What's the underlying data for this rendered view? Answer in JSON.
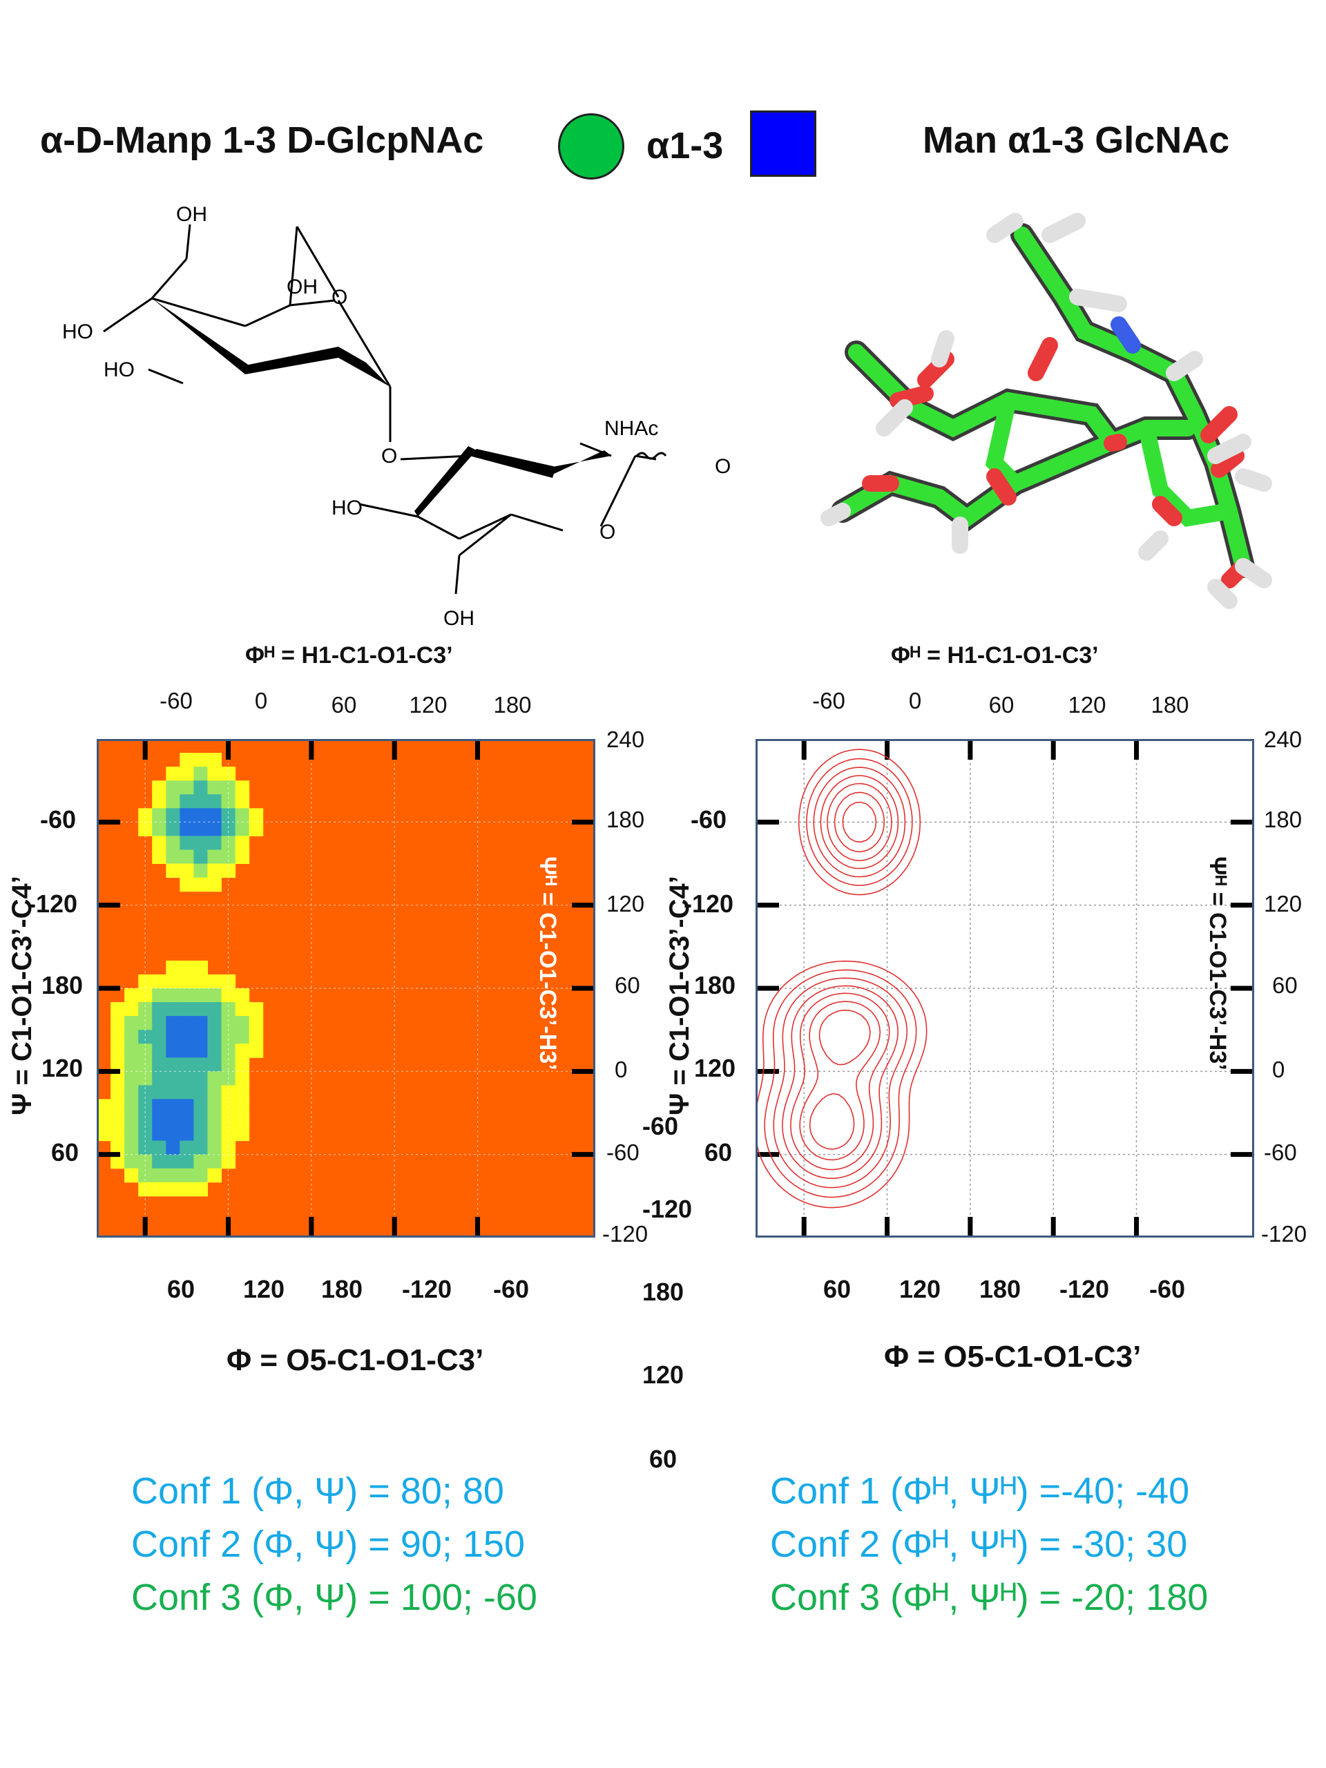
{
  "header": {
    "left_title": "α-D-Manp 1-3 D-GlcpNAc",
    "linkage_label": "α1-3",
    "right_title": "Man α1-3 GlcNAc",
    "circle_color": "#00c040",
    "square_color": "#0000ff"
  },
  "structure": {
    "labels": [
      "OH",
      "OH",
      "O",
      "HO",
      "HO",
      "O",
      "NHAc",
      "OH",
      "HO",
      "O",
      "OH"
    ]
  },
  "plots": {
    "top_axis_title": "Φᴴ = H1-C1-O1-C3’",
    "bottom_axis_title": "Φ = O5-C1-O1-C3’",
    "left_axis_title": "Ψ = C1-O1-C3’-C4’",
    "right_axis_title": "Ψᴴ = C1-O1-C3’-H3’",
    "top_ticks": [
      "-60",
      "0",
      "60",
      "120",
      "180"
    ],
    "bottom_ticks": [
      "60",
      "120",
      "180",
      "-120",
      "-60"
    ],
    "left_ticks": [
      "-60",
      "-120",
      "180",
      "120",
      "60"
    ],
    "right_ticks": [
      "240",
      "180",
      "120",
      "60",
      "0",
      "-60",
      "-120"
    ],
    "stray_labels": {
      "left_m60": "-60",
      "mid_m120": "-120",
      "mid_180": "180",
      "mid_120": "120",
      "mid_60": "60"
    }
  },
  "chart_data": [
    {
      "type": "heatmap",
      "title": "",
      "xlabel": "Φ = O5-C1-O1-C3’",
      "x2label": "Φᴴ = H1-C1-O1-C3’",
      "ylabel": "Ψ = C1-O1-C3’-C4’",
      "y2label": "Ψᴴ = C1-O1-C3’-H3’",
      "xlim_phiH": [
        -95,
        265
      ],
      "ylim_psiH": [
        -120,
        240
      ],
      "colormap": [
        "#ff6000",
        "#ffff20",
        "#9be564",
        "#40b8a0",
        "#2070e0"
      ],
      "background_color": "#ff6000",
      "minima_phiH_psiH": [
        [
          -40,
          -40
        ],
        [
          -30,
          30
        ],
        [
          -20,
          180
        ]
      ]
    },
    {
      "type": "contour",
      "title": "",
      "xlabel": "Φ = O5-C1-O1-C3’",
      "x2label": "Φᴴ = H1-C1-O1-C3’",
      "ylabel": "Ψ = C1-O1-C3’-C4’",
      "y2label": "Ψᴴ = C1-O1-C3’-H3’",
      "xlim_phiH": [
        -95,
        265
      ],
      "ylim_psiH": [
        -120,
        240
      ],
      "line_color": "#e03030",
      "grid": true,
      "minima_phiH_psiH": [
        [
          -40,
          -40
        ],
        [
          -30,
          30
        ],
        [
          -20,
          180
        ]
      ]
    }
  ],
  "conformations": {
    "left": [
      {
        "label": "Conf 1 (Φ, Ψ) =   80; 80",
        "color": "#17a9e6"
      },
      {
        "label": "Conf 2 (Φ, Ψ) =   90; 150",
        "color": "#17a9e6"
      },
      {
        "label": "Conf 3 (Φ, Ψ) =  100; -60",
        "color": "#17b050"
      }
    ],
    "right": [
      {
        "label": "Conf 1 (Φᴴ, Ψᴴ) =-40; -40",
        "color": "#17a9e6"
      },
      {
        "label": "Conf 2 (Φᴴ, Ψᴴ) = -30; 30",
        "color": "#17a9e6"
      },
      {
        "label": "Conf 3 (Φᴴ, Ψᴴ) = -20; 180",
        "color": "#17b050"
      }
    ]
  }
}
